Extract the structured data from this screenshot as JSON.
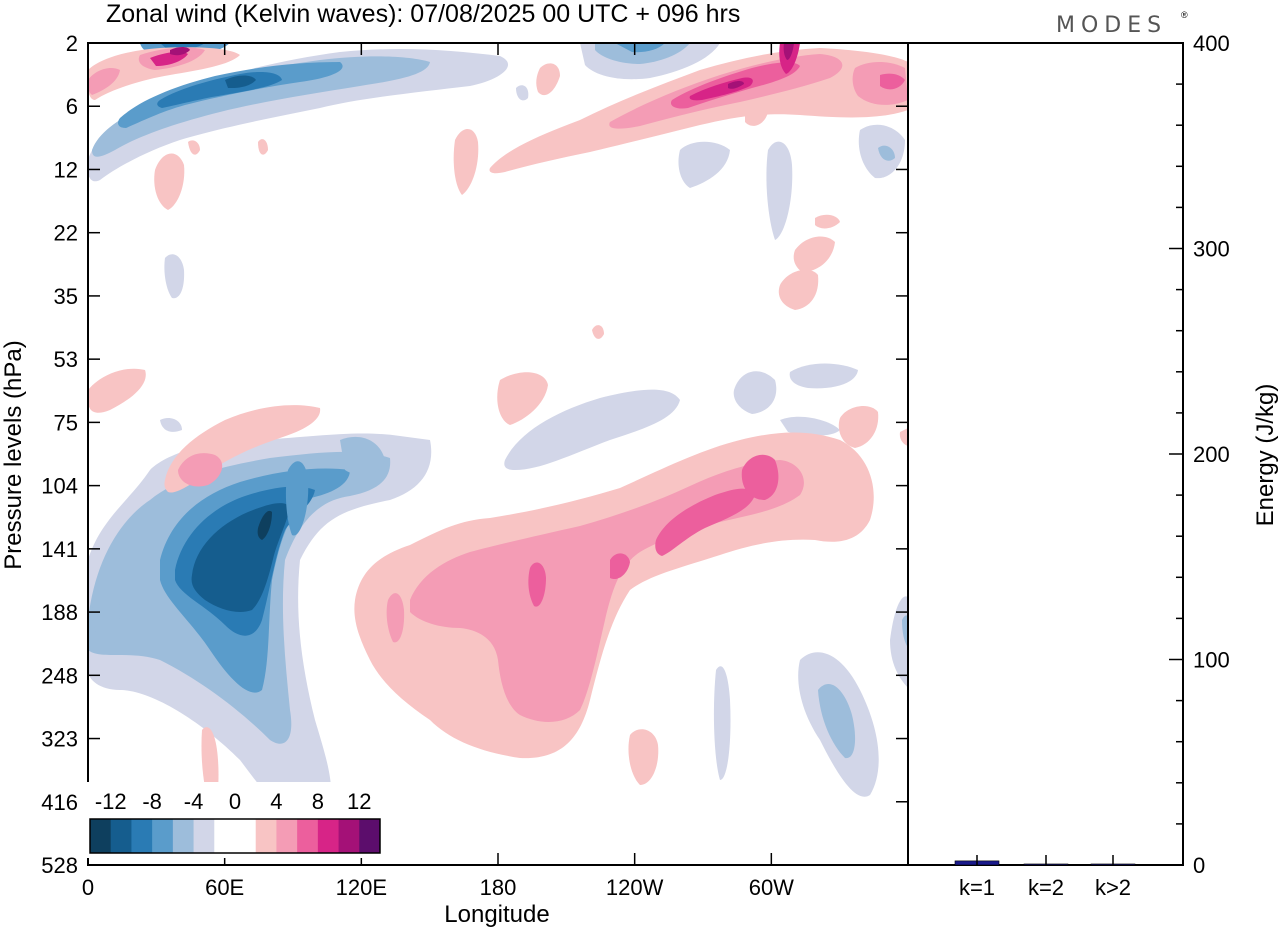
{
  "chart_data": [
    {
      "type": "heatmap",
      "title": "Zonal wind (Kelvin waves):  07/08/2025  00 UTC  + 096 hrs",
      "xlabel": "Longitude",
      "ylabel": "Pressure levels (hPa)",
      "x_ticks": [
        "0",
        "60E",
        "120E",
        "180",
        "120W",
        "60W"
      ],
      "y_ticks": [
        "2",
        "6",
        "12",
        "22",
        "35",
        "53",
        "75",
        "104",
        "141",
        "188",
        "248",
        "323",
        "416",
        "528"
      ],
      "colorbar": {
        "labels": [
          "-12",
          "-8",
          "-4",
          "0",
          "4",
          "8",
          "12"
        ],
        "colors": [
          "#0e3f5e",
          "#155d8e",
          "#2a7bb4",
          "#5a9ccb",
          "#9dbddb",
          "#d2d6e8",
          "#ffffff",
          "#ffffff",
          "#f8c4c4",
          "#f49cb5",
          "#ec5f9d",
          "#d72487",
          "#a41177",
          "#5c0d6c"
        ]
      },
      "features": [
        {
          "name": "upper-easterly-band",
          "value": -10,
          "lon": [
            0,
            90
          ],
          "level": "2-12 hPa"
        },
        {
          "name": "upper-westerly-band",
          "value": 10,
          "lon": [
            190,
            300
          ],
          "level": "2-12 hPa"
        },
        {
          "name": "lower-easterly-core",
          "value": -12,
          "lon": [
            30,
            75
          ],
          "level": "104-248 hPa"
        },
        {
          "name": "lower-westerly-band",
          "value": 8,
          "lon": [
            120,
            260
          ],
          "level": "104-323 hPa"
        }
      ]
    },
    {
      "type": "bar",
      "categories": [
        "k=1",
        "k=2",
        "k>2"
      ],
      "values": [
        2,
        0.5,
        0.5
      ],
      "ylabel": "Energy (J/kg)",
      "ylim": [
        0,
        400
      ],
      "y_ticks": [
        "0",
        "100",
        "200",
        "300",
        "400"
      ],
      "bar_color": "#1a1a8c"
    }
  ],
  "branding": {
    "logo": "MODES"
  }
}
